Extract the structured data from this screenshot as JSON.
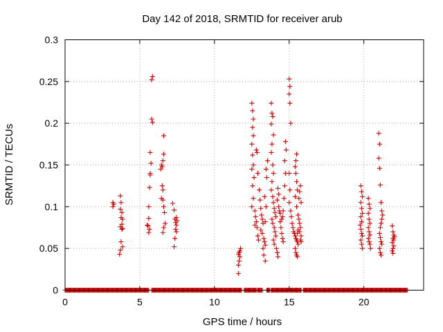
{
  "chart_data": {
    "type": "scatter",
    "title": "Day 142 of 2018, SRMTID for receiver arub",
    "xlabel": "GPS time / hours",
    "ylabel": "SRMTID / TECUs",
    "xlim": [
      0,
      24
    ],
    "ylim": [
      0,
      0.3
    ],
    "xticks": [
      0,
      5,
      10,
      15,
      20
    ],
    "xtick_labels": [
      "0",
      "5",
      "10",
      "15",
      "20"
    ],
    "yticks": [
      0,
      0.05,
      0.1,
      0.15,
      0.2,
      0.25,
      0.3
    ],
    "ytick_labels": [
      "0",
      "0.05",
      "0.1",
      "0.15",
      "0.2",
      "0.25",
      "0.3"
    ],
    "grid": true,
    "marker": "+",
    "series_color": "#cc0000",
    "zero_baseline_segments": [
      [
        0.0,
        5.6
      ],
      [
        5.8,
        11.8
      ],
      [
        12.0,
        12.8
      ],
      [
        12.9,
        13.2
      ],
      [
        13.5,
        13.7
      ],
      [
        13.8,
        15.8
      ],
      [
        15.95,
        22.9
      ]
    ],
    "points": [
      [
        3.2,
        0.105
      ],
      [
        3.2,
        0.1
      ],
      [
        3.25,
        0.103
      ],
      [
        3.7,
        0.113
      ],
      [
        3.75,
        0.105
      ],
      [
        3.7,
        0.097
      ],
      [
        3.8,
        0.093
      ],
      [
        3.75,
        0.087
      ],
      [
        3.85,
        0.085
      ],
      [
        3.8,
        0.079
      ],
      [
        3.7,
        0.076
      ],
      [
        3.85,
        0.074
      ],
      [
        3.8,
        0.073
      ],
      [
        3.75,
        0.058
      ],
      [
        3.85,
        0.052
      ],
      [
        3.7,
        0.048
      ],
      [
        3.65,
        0.043
      ],
      [
        5.5,
        0.078
      ],
      [
        5.55,
        0.077
      ],
      [
        5.6,
        0.086
      ],
      [
        5.6,
        0.1
      ],
      [
        5.65,
        0.123
      ],
      [
        5.7,
        0.138
      ],
      [
        5.7,
        0.14
      ],
      [
        5.75,
        0.152
      ],
      [
        5.7,
        0.165
      ],
      [
        5.8,
        0.205
      ],
      [
        5.85,
        0.201
      ],
      [
        5.8,
        0.252
      ],
      [
        5.85,
        0.256
      ],
      [
        5.65,
        0.073
      ],
      [
        5.6,
        0.069
      ],
      [
        6.4,
        0.145
      ],
      [
        6.45,
        0.15
      ],
      [
        6.5,
        0.148
      ],
      [
        6.55,
        0.155
      ],
      [
        6.6,
        0.163
      ],
      [
        6.6,
        0.185
      ],
      [
        6.5,
        0.125
      ],
      [
        6.55,
        0.12
      ],
      [
        6.45,
        0.11
      ],
      [
        6.55,
        0.108
      ],
      [
        6.6,
        0.1
      ],
      [
        6.65,
        0.093
      ],
      [
        6.7,
        0.08
      ],
      [
        6.6,
        0.075
      ],
      [
        6.55,
        0.069
      ],
      [
        7.2,
        0.104
      ],
      [
        7.3,
        0.096
      ],
      [
        7.35,
        0.085
      ],
      [
        7.4,
        0.081
      ],
      [
        7.45,
        0.078
      ],
      [
        7.4,
        0.073
      ],
      [
        7.45,
        0.07
      ],
      [
        7.35,
        0.062
      ],
      [
        7.3,
        0.052
      ],
      [
        7.5,
        0.083
      ],
      [
        7.45,
        0.087
      ],
      [
        11.6,
        0.02
      ],
      [
        11.6,
        0.03
      ],
      [
        11.65,
        0.035
      ],
      [
        11.7,
        0.04
      ],
      [
        11.6,
        0.043
      ],
      [
        11.65,
        0.045
      ],
      [
        11.7,
        0.047
      ],
      [
        11.75,
        0.05
      ],
      [
        12.5,
        0.224
      ],
      [
        12.55,
        0.215
      ],
      [
        12.6,
        0.205
      ],
      [
        12.55,
        0.195
      ],
      [
        12.6,
        0.185
      ],
      [
        12.5,
        0.175
      ],
      [
        12.55,
        0.162
      ],
      [
        12.6,
        0.15
      ],
      [
        12.5,
        0.145
      ],
      [
        12.65,
        0.135
      ],
      [
        12.55,
        0.125
      ],
      [
        12.6,
        0.11
      ],
      [
        12.5,
        0.1
      ],
      [
        12.7,
        0.095
      ],
      [
        12.75,
        0.088
      ],
      [
        12.8,
        0.082
      ],
      [
        12.7,
        0.078
      ],
      [
        12.85,
        0.075
      ],
      [
        12.9,
        0.065
      ],
      [
        12.95,
        0.06
      ],
      [
        12.8,
        0.168
      ],
      [
        12.85,
        0.165
      ],
      [
        12.9,
        0.14
      ],
      [
        13.0,
        0.12
      ],
      [
        13.05,
        0.108
      ],
      [
        13.1,
        0.098
      ],
      [
        13.15,
        0.09
      ],
      [
        13.2,
        0.085
      ],
      [
        13.25,
        0.08
      ],
      [
        13.1,
        0.072
      ],
      [
        13.2,
        0.068
      ],
      [
        13.3,
        0.062
      ],
      [
        13.35,
        0.058
      ],
      [
        13.4,
        0.054
      ],
      [
        13.25,
        0.05
      ],
      [
        13.3,
        0.042
      ],
      [
        13.4,
        0.035
      ],
      [
        13.45,
        0.1
      ],
      [
        13.5,
        0.135
      ],
      [
        13.55,
        0.155
      ],
      [
        13.45,
        0.145
      ],
      [
        13.35,
        0.112
      ],
      [
        13.4,
        0.082
      ],
      [
        13.8,
        0.224
      ],
      [
        13.85,
        0.212
      ],
      [
        13.9,
        0.208
      ],
      [
        13.8,
        0.199
      ],
      [
        13.95,
        0.186
      ],
      [
        13.85,
        0.175
      ],
      [
        13.8,
        0.165
      ],
      [
        13.9,
        0.15
      ],
      [
        13.95,
        0.14
      ],
      [
        13.85,
        0.13
      ],
      [
        13.8,
        0.12
      ],
      [
        13.9,
        0.112
      ],
      [
        13.95,
        0.105
      ],
      [
        14.0,
        0.098
      ],
      [
        14.05,
        0.093
      ],
      [
        14.1,
        0.088
      ],
      [
        13.85,
        0.085
      ],
      [
        13.9,
        0.08
      ],
      [
        14.0,
        0.075
      ],
      [
        14.05,
        0.07
      ],
      [
        14.1,
        0.065
      ],
      [
        13.95,
        0.06
      ],
      [
        14.0,
        0.055
      ],
      [
        14.15,
        0.05
      ],
      [
        14.2,
        0.045
      ],
      [
        14.25,
        0.04
      ],
      [
        14.3,
        0.1
      ],
      [
        14.35,
        0.095
      ],
      [
        14.4,
        0.092
      ],
      [
        14.2,
        0.108
      ],
      [
        14.3,
        0.115
      ],
      [
        14.25,
        0.122
      ],
      [
        14.4,
        0.082
      ],
      [
        14.45,
        0.075
      ],
      [
        14.5,
        0.068
      ],
      [
        14.55,
        0.062
      ],
      [
        14.6,
        0.058
      ],
      [
        14.65,
        0.11
      ],
      [
        14.7,
        0.125
      ],
      [
        14.75,
        0.14
      ],
      [
        14.7,
        0.155
      ],
      [
        14.8,
        0.168
      ],
      [
        14.75,
        0.178
      ],
      [
        14.6,
        0.095
      ],
      [
        14.55,
        0.088
      ],
      [
        14.5,
        0.085
      ],
      [
        15.0,
        0.253
      ],
      [
        15.05,
        0.244
      ],
      [
        15.0,
        0.235
      ],
      [
        15.05,
        0.224
      ],
      [
        15.1,
        0.2
      ],
      [
        15.0,
        0.14
      ],
      [
        15.05,
        0.12
      ],
      [
        15.0,
        0.105
      ],
      [
        15.1,
        0.095
      ],
      [
        15.15,
        0.088
      ],
      [
        15.2,
        0.08
      ],
      [
        15.25,
        0.075
      ],
      [
        15.3,
        0.07
      ],
      [
        15.35,
        0.068
      ],
      [
        15.4,
        0.065
      ],
      [
        15.45,
        0.062
      ],
      [
        15.5,
        0.06
      ],
      [
        15.55,
        0.058
      ],
      [
        15.6,
        0.055
      ],
      [
        15.4,
        0.05
      ],
      [
        15.45,
        0.045
      ],
      [
        15.5,
        0.042
      ],
      [
        15.55,
        0.04
      ],
      [
        15.5,
        0.163
      ],
      [
        15.45,
        0.155
      ],
      [
        15.4,
        0.148
      ],
      [
        15.45,
        0.14
      ],
      [
        15.5,
        0.13
      ],
      [
        15.55,
        0.12
      ],
      [
        15.4,
        0.112
      ],
      [
        15.5,
        0.1
      ],
      [
        15.6,
        0.09
      ],
      [
        15.65,
        0.085
      ],
      [
        15.7,
        0.08
      ],
      [
        15.75,
        0.075
      ],
      [
        15.7,
        0.07
      ],
      [
        15.8,
        0.065
      ],
      [
        15.75,
        0.06
      ],
      [
        15.8,
        0.058
      ],
      [
        15.65,
        0.11
      ],
      [
        15.7,
        0.118
      ],
      [
        15.75,
        0.125
      ],
      [
        15.8,
        0.105
      ],
      [
        15.6,
        0.072
      ],
      [
        15.55,
        0.068
      ],
      [
        19.8,
        0.125
      ],
      [
        19.85,
        0.118
      ],
      [
        19.9,
        0.112
      ],
      [
        19.8,
        0.105
      ],
      [
        19.85,
        0.098
      ],
      [
        19.9,
        0.092
      ],
      [
        19.8,
        0.088
      ],
      [
        19.85,
        0.082
      ],
      [
        19.75,
        0.078
      ],
      [
        19.8,
        0.073
      ],
      [
        19.85,
        0.068
      ],
      [
        19.9,
        0.065
      ],
      [
        19.8,
        0.06
      ],
      [
        19.85,
        0.055
      ],
      [
        19.9,
        0.05
      ],
      [
        20.3,
        0.11
      ],
      [
        20.35,
        0.103
      ],
      [
        20.4,
        0.098
      ],
      [
        20.3,
        0.092
      ],
      [
        20.35,
        0.085
      ],
      [
        20.4,
        0.08
      ],
      [
        20.3,
        0.075
      ],
      [
        20.35,
        0.07
      ],
      [
        20.4,
        0.066
      ],
      [
        20.3,
        0.062
      ],
      [
        20.35,
        0.058
      ],
      [
        20.4,
        0.055
      ],
      [
        20.45,
        0.05
      ],
      [
        21.0,
        0.188
      ],
      [
        21.05,
        0.175
      ],
      [
        21.0,
        0.158
      ],
      [
        21.05,
        0.146
      ],
      [
        21.1,
        0.126
      ],
      [
        21.15,
        0.105
      ],
      [
        21.2,
        0.095
      ],
      [
        21.25,
        0.09
      ],
      [
        21.2,
        0.085
      ],
      [
        21.15,
        0.08
      ],
      [
        21.1,
        0.075
      ],
      [
        21.05,
        0.068
      ],
      [
        21.1,
        0.063
      ],
      [
        21.15,
        0.058
      ],
      [
        21.2,
        0.055
      ],
      [
        21.05,
        0.05
      ],
      [
        21.1,
        0.045
      ],
      [
        21.15,
        0.042
      ],
      [
        21.9,
        0.077
      ],
      [
        21.95,
        0.07
      ],
      [
        22.0,
        0.066
      ],
      [
        21.95,
        0.062
      ],
      [
        22.0,
        0.06
      ],
      [
        21.9,
        0.057
      ],
      [
        22.0,
        0.053
      ],
      [
        21.95,
        0.05
      ],
      [
        21.9,
        0.047
      ],
      [
        21.95,
        0.044
      ],
      [
        22.05,
        0.064
      ]
    ]
  }
}
